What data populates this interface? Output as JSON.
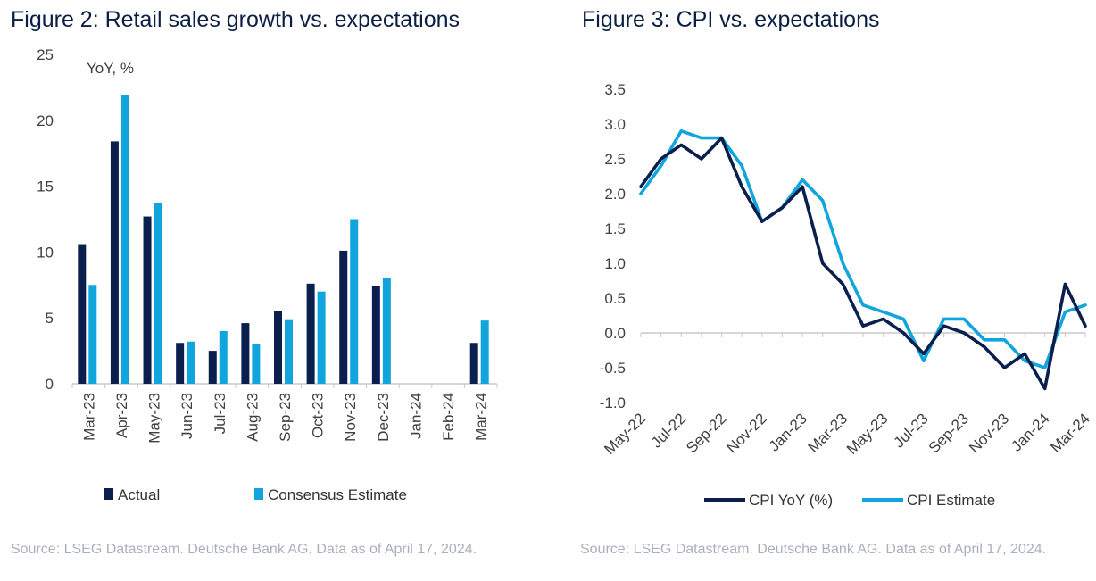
{
  "figures": {
    "fig2": {
      "title": "Figure 2: Retail sales growth vs. expectations",
      "source": "Source: LSEG Datastream. Deutsche Bank AG. Data as of April 17, 2024."
    },
    "fig3": {
      "title": "Figure 3: CPI vs. expectations",
      "source": "Source: LSEG Datastream. Deutsche Bank AG. Data as of April 17, 2024."
    }
  },
  "colors": {
    "actual": "#0b1f4e",
    "estimate": "#10a5dc",
    "axis": "#c8c8c8"
  },
  "chart_data": [
    {
      "type": "bar",
      "title": "Figure 2: Retail sales growth vs. expectations",
      "ylabel": "YoY, %",
      "ylim": [
        0,
        25
      ],
      "yticks": [
        0,
        5,
        10,
        15,
        20,
        25
      ],
      "categories": [
        "Mar-23",
        "Apr-23",
        "May-23",
        "Jun-23",
        "Jul-23",
        "Aug-23",
        "Sep-23",
        "Oct-23",
        "Nov-23",
        "Dec-23",
        "Jan-24",
        "Feb-24",
        "Mar-24"
      ],
      "series": [
        {
          "name": "Actual",
          "color": "#0b1f4e",
          "values": [
            10.6,
            18.4,
            12.7,
            3.1,
            2.5,
            4.6,
            5.5,
            7.6,
            10.1,
            7.4,
            null,
            null,
            3.1
          ]
        },
        {
          "name": "Consensus Estimate",
          "color": "#10a5dc",
          "values": [
            7.5,
            21.9,
            13.7,
            3.2,
            4.0,
            3.0,
            4.9,
            7.0,
            12.5,
            8.0,
            null,
            null,
            4.8
          ]
        }
      ],
      "legend": "bottom"
    },
    {
      "type": "line",
      "title": "Figure 3: CPI vs. expectations",
      "ylim": [
        -1.0,
        3.5
      ],
      "yticks": [
        "3.5",
        "3.0",
        "2.5",
        "2.0",
        "1.5",
        "1.0",
        "0.5",
        "0.0",
        "-0.5",
        "-1.0"
      ],
      "x": [
        "May-22",
        "Jun-22",
        "Jul-22",
        "Aug-22",
        "Sep-22",
        "Oct-22",
        "Nov-22",
        "Dec-22",
        "Jan-23",
        "Feb-23",
        "Mar-23",
        "Apr-23",
        "May-23",
        "Jun-23",
        "Jul-23",
        "Aug-23",
        "Sep-23",
        "Oct-23",
        "Nov-23",
        "Dec-23",
        "Jan-24",
        "Feb-24",
        "Mar-24"
      ],
      "xtick_labels": [
        "May-22",
        "Jul-22",
        "Sep-22",
        "Nov-22",
        "Jan-23",
        "Mar-23",
        "May-23",
        "Jul-23",
        "Sep-23",
        "Nov-23",
        "Jan-24",
        "Mar-24"
      ],
      "series": [
        {
          "name": "CPI YoY (%)",
          "color": "#0b1f4e",
          "values": [
            2.1,
            2.5,
            2.7,
            2.5,
            2.8,
            2.1,
            1.6,
            1.8,
            2.1,
            1.0,
            0.7,
            0.1,
            0.2,
            0.0,
            -0.3,
            0.1,
            0.0,
            -0.2,
            -0.5,
            -0.3,
            -0.8,
            0.7,
            0.1
          ]
        },
        {
          "name": "CPI Estimate",
          "color": "#10a5dc",
          "values": [
            2.0,
            2.4,
            2.9,
            2.8,
            2.8,
            2.4,
            1.6,
            1.8,
            2.2,
            1.9,
            1.0,
            0.4,
            0.3,
            0.2,
            -0.4,
            0.2,
            0.2,
            -0.1,
            -0.1,
            -0.4,
            -0.5,
            0.3,
            0.4
          ]
        }
      ],
      "legend": "bottom"
    }
  ]
}
